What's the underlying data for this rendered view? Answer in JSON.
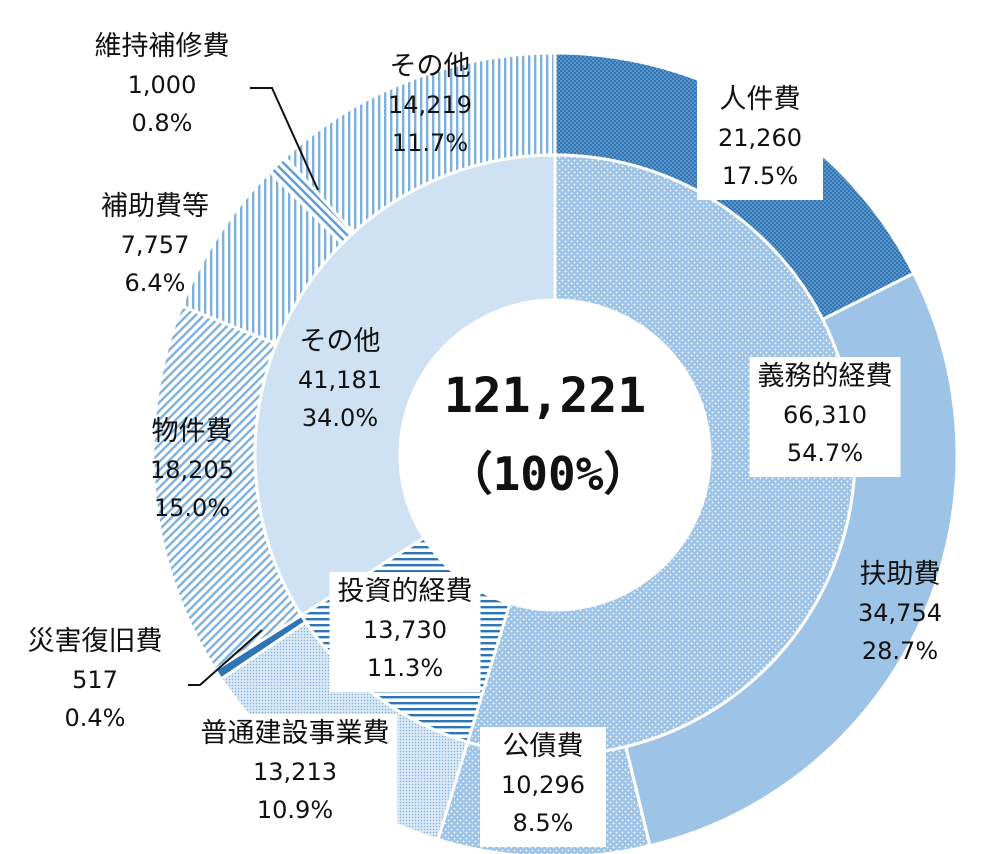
{
  "chart_data": {
    "type": "donut",
    "total": {
      "value_text": "121,221",
      "percent_text": "（100%）"
    },
    "inner": [
      {
        "label": "義務的経費",
        "value": 66310,
        "value_text": "66,310",
        "percent_text": "54.7%",
        "color": "#9dc3e6",
        "pattern": "dots"
      },
      {
        "label": "投資的経費",
        "value": 13730,
        "value_text": "13,730",
        "percent_text": "11.3%",
        "color": "#bdd7ee",
        "pattern": "hlines"
      },
      {
        "label": "その他",
        "value": 41181,
        "value_text": "41,181",
        "percent_text": "34.0%",
        "color": "#cfe2f3",
        "pattern": "solid"
      }
    ],
    "outer": [
      {
        "label": "人件費",
        "value": 21260,
        "value_text": "21,260",
        "percent_text": "17.5%",
        "color": "#2e75b6",
        "pattern": "dense-dots"
      },
      {
        "label": "扶助費",
        "value": 34754,
        "value_text": "34,754",
        "percent_text": "28.7%",
        "color": "#9dc3e6",
        "pattern": "solid"
      },
      {
        "label": "公債費",
        "value": 10296,
        "value_text": "10,296",
        "percent_text": "8.5%",
        "color": "#9dc3e6",
        "pattern": "dots"
      },
      {
        "label": "普通建設事業費",
        "value": 13213,
        "value_text": "13,213",
        "percent_text": "10.9%",
        "color": "#bdd7ee",
        "pattern": "fine-dots"
      },
      {
        "label": "災害復旧費",
        "value": 517,
        "value_text": "517",
        "percent_text": "0.4%",
        "color": "#2e75b6",
        "pattern": "solid"
      },
      {
        "label": "物件費",
        "value": 18205,
        "value_text": "18,205",
        "percent_text": "15.0%",
        "color": "#9dc3e6",
        "pattern": "diag"
      },
      {
        "label": "補助費等",
        "value": 7757,
        "value_text": "7,757",
        "percent_text": "6.4%",
        "color": "#9dc3e6",
        "pattern": "vlines"
      },
      {
        "label": "維持補修費",
        "value": 1000,
        "value_text": "1,000",
        "percent_text": "0.8%",
        "color": "#9dc3e6",
        "pattern": "diag-back"
      },
      {
        "label": "その他",
        "value": 14219,
        "value_text": "14,219",
        "percent_text": "11.7%",
        "color": "#9dc3e6",
        "pattern": "vlines"
      }
    ]
  }
}
